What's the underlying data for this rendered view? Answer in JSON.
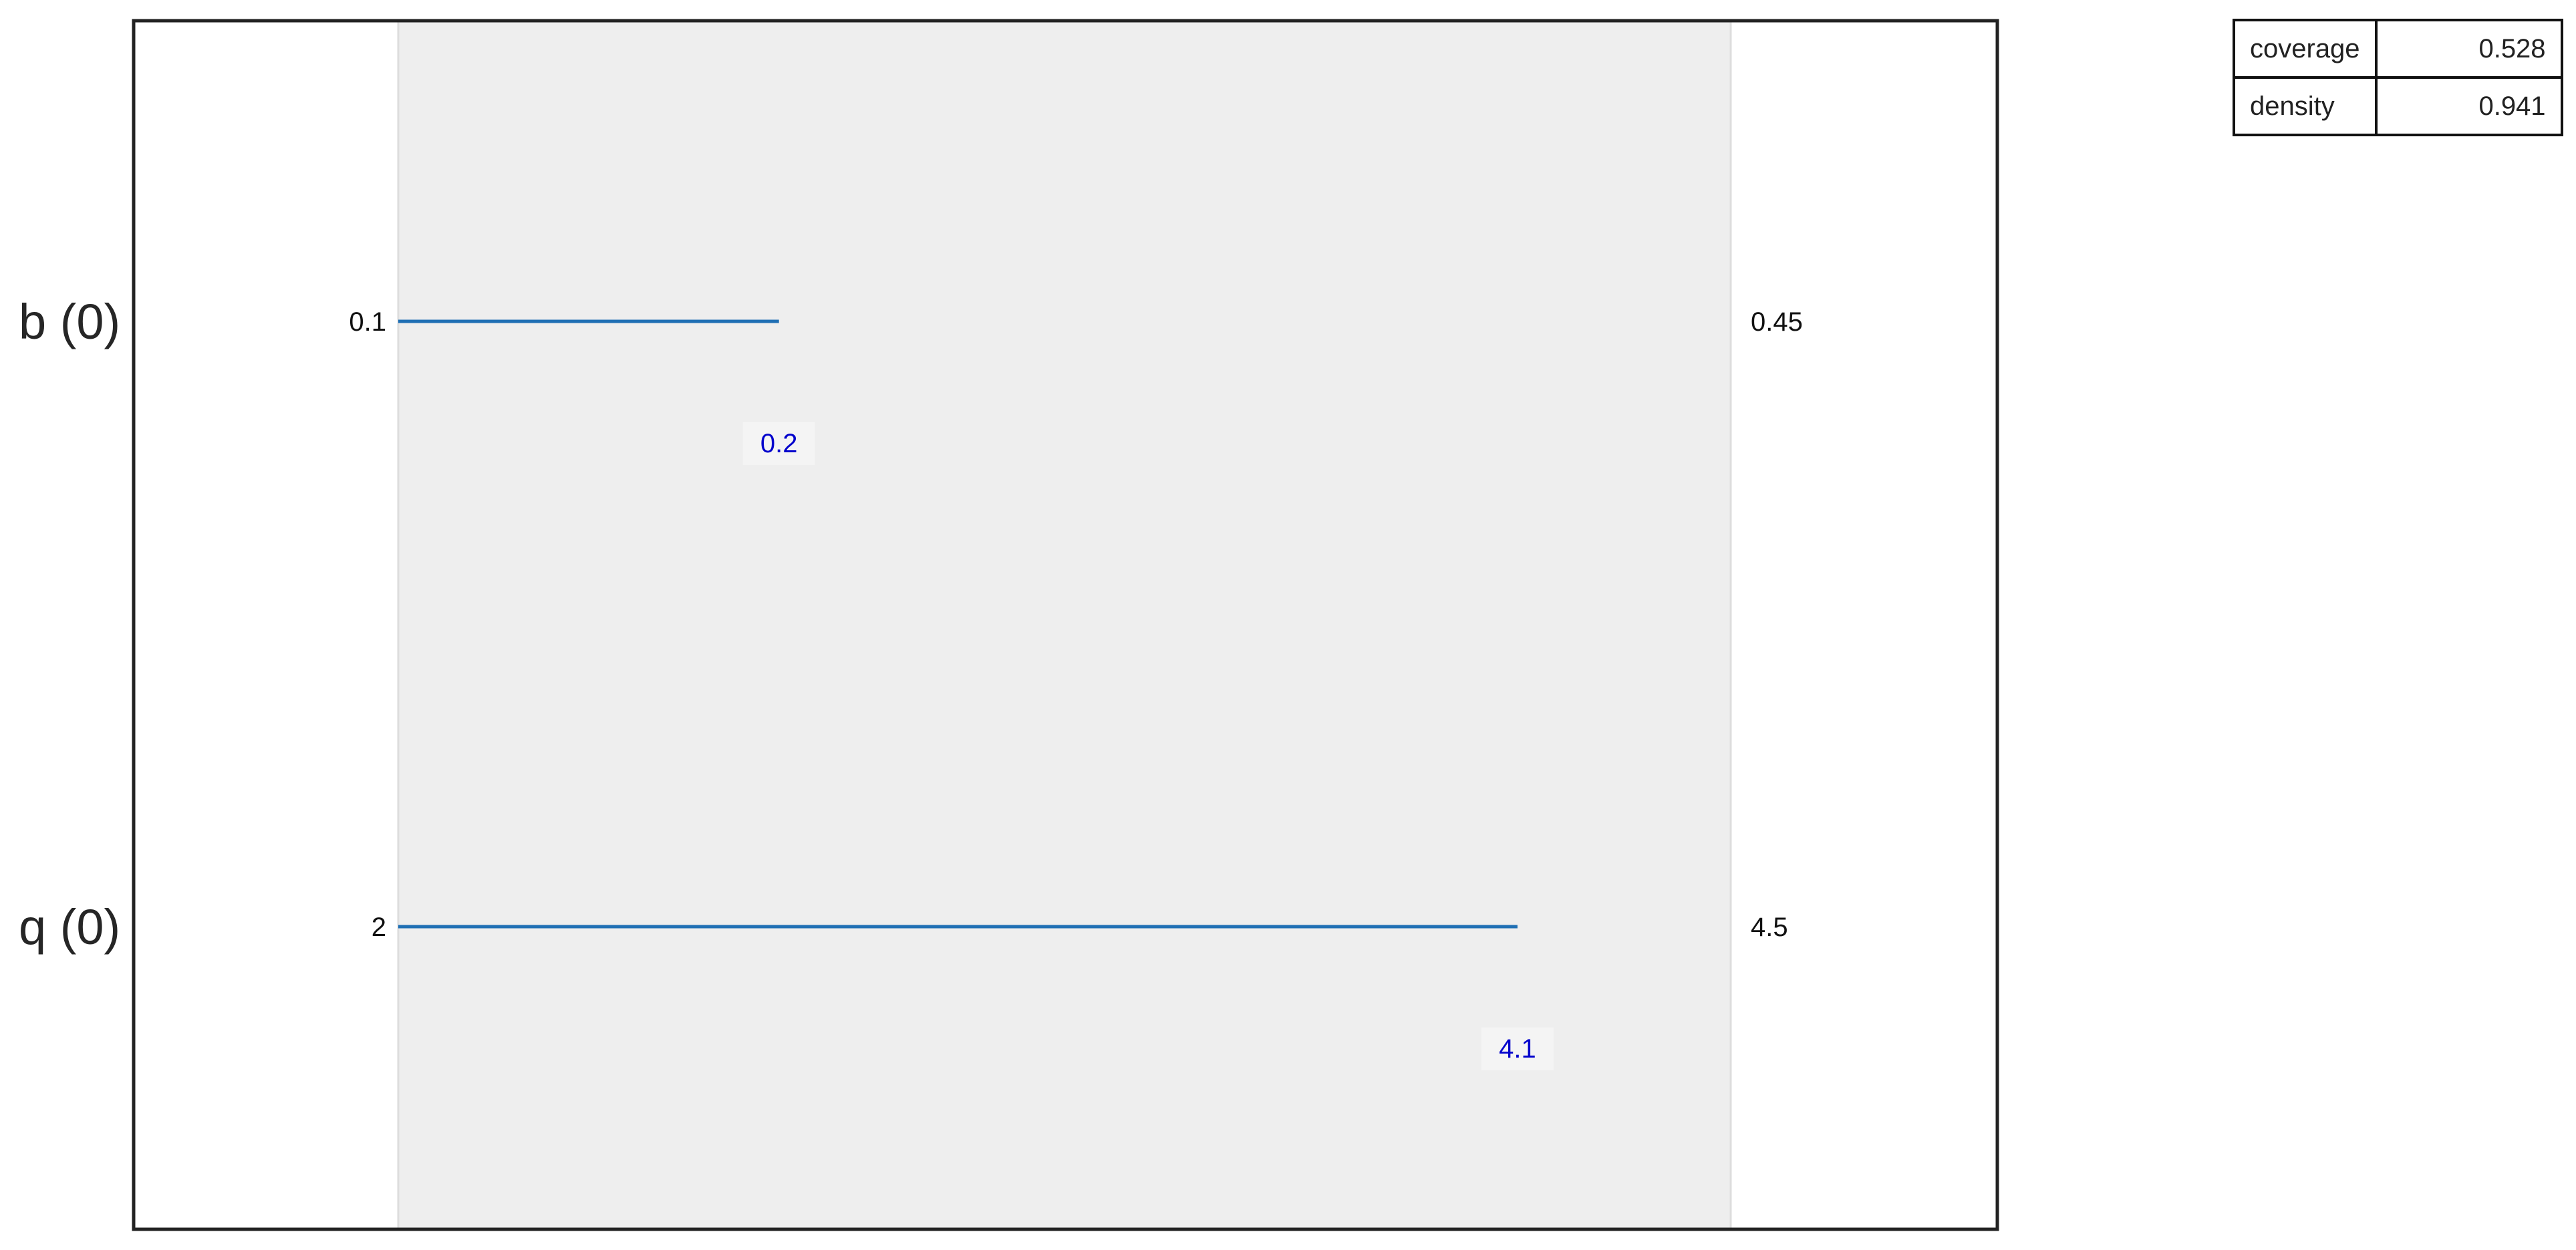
{
  "chart_data": {
    "type": "range",
    "rows": [
      {
        "label": "b (0)",
        "min": 0.1,
        "max": 0.45,
        "value": 0.2,
        "min_label": "0.1",
        "max_label": "0.45",
        "value_label": "0.2"
      },
      {
        "label": "q (0)",
        "min": 2,
        "max": 4.5,
        "value": 4.1,
        "min_label": "2",
        "max_label": "4.5",
        "value_label": "4.1"
      }
    ]
  },
  "stats_table": [
    {
      "key": "coverage",
      "value": "0.528"
    },
    {
      "key": "density",
      "value": "0.941"
    }
  ],
  "colors": {
    "bar": "#1f6fb4",
    "value_label": "#0000cc",
    "range_band": "#eeeeee",
    "frame": "#222222"
  }
}
